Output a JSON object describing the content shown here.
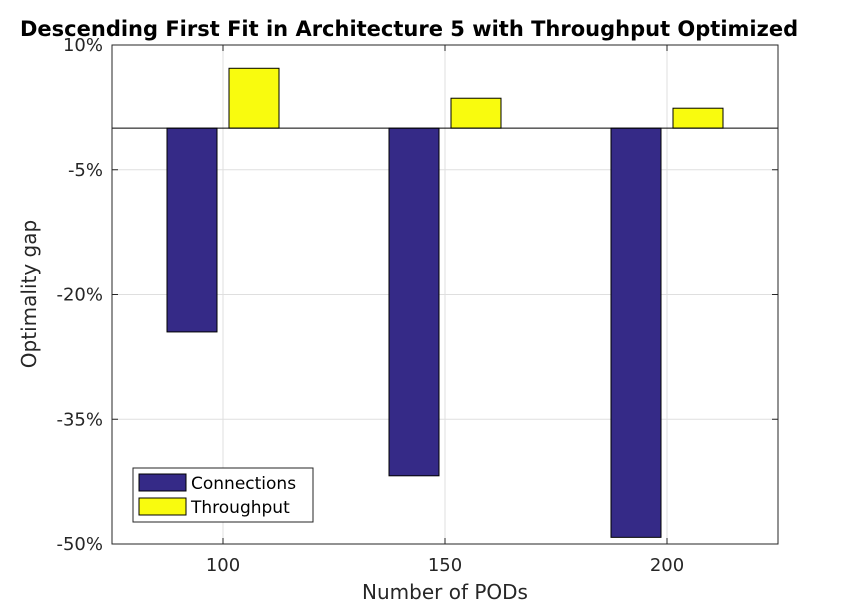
{
  "chart_data": {
    "type": "bar",
    "title": "Descending First Fit in Architecture 5 with Throughput Optimized",
    "xlabel": "Number of PODs",
    "ylabel": "Optimality gap",
    "categories": [
      "100",
      "150",
      "200"
    ],
    "series": [
      {
        "name": "Connections",
        "values": [
          -24.5,
          -41.8,
          -49.2
        ],
        "color": "#352a87"
      },
      {
        "name": "Throughput",
        "values": [
          7.2,
          3.6,
          2.4
        ],
        "color": "#f9fb0e"
      }
    ],
    "ylim": [
      -50,
      10
    ],
    "yticks": [
      10,
      -5,
      -20,
      -35,
      -50
    ],
    "ytick_labels": [
      "10%",
      "-5%",
      "-20%",
      "-35%",
      "-50%"
    ],
    "xlim": [
      75,
      225
    ],
    "xticks": [
      100,
      150,
      200
    ],
    "xtick_labels": [
      "100",
      "150",
      "200"
    ],
    "grid": true,
    "legend_location": "bottom-left"
  }
}
